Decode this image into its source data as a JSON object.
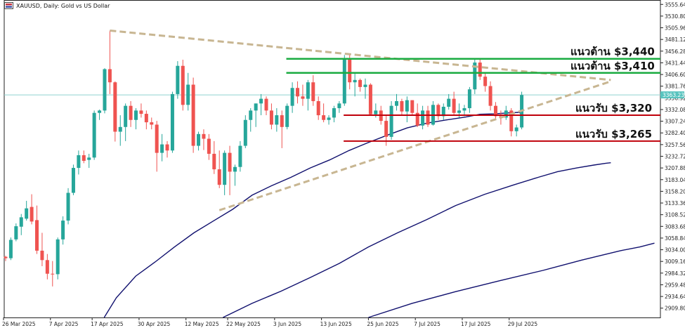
{
  "header": {
    "symbol": "XAUUSD",
    "timeframe": "Daily",
    "description": "Gold vs US Dollar",
    "full_title": "XAUUSD, Daily:  Gold vs US Dollar"
  },
  "chart_data": {
    "type": "candlestick",
    "symbol": "XAUUSD",
    "timeframe": "Daily",
    "ylim": [
      2890,
      3565
    ],
    "y_ticks": [
      "3555.64",
      "3530.80",
      "3505.96",
      "3481.12",
      "3456.28",
      "3431.44",
      "3406.60",
      "3381.76",
      "3356.92",
      "3332.08",
      "3307.24",
      "3282.40",
      "3257.56",
      "3232.72",
      "3207.88",
      "3183.04",
      "3158.20",
      "3133.36",
      "3108.52",
      "3083.68",
      "3058.84",
      "3034.00",
      "3009.16",
      "2984.32",
      "2959.48",
      "2934.64",
      "2909.80"
    ],
    "x_ticks": [
      "26 Mar 2025",
      "7 Apr 2025",
      "17 Apr 2025",
      "30 Apr 2025",
      "12 May 2025",
      "22 May 2025",
      "3 Jun 2025",
      "13 Jun 2025",
      "25 Jun 2025",
      "7 Jul 2025",
      "17 Jul 2025",
      "29 Jul 2025"
    ],
    "current_price": "3363.23",
    "current_price_value": 3363.23,
    "colors": {
      "bull": "#26a69a",
      "bear": "#ef5350",
      "resistance": "#1aab40",
      "support": "#c0000a",
      "trend": "#c8b692",
      "ma": "#10106e",
      "price_line": "#8fd3d0"
    },
    "candles": [
      {
        "o": 3019,
        "h": 3021,
        "l": 3010,
        "c": 3016
      },
      {
        "o": 3016,
        "h": 3060,
        "l": 3012,
        "c": 3055
      },
      {
        "o": 3056,
        "h": 3090,
        "l": 3052,
        "c": 3084
      },
      {
        "o": 3083,
        "h": 3110,
        "l": 3065,
        "c": 3103
      },
      {
        "o": 3100,
        "h": 3138,
        "l": 3096,
        "c": 3122
      },
      {
        "o": 3125,
        "h": 3152,
        "l": 3088,
        "c": 3094
      },
      {
        "o": 3097,
        "h": 3128,
        "l": 3025,
        "c": 3032
      },
      {
        "o": 3032,
        "h": 3070,
        "l": 2999,
        "c": 3012
      },
      {
        "o": 3012,
        "h": 3025,
        "l": 2971,
        "c": 2983
      },
      {
        "o": 2983,
        "h": 3010,
        "l": 2956,
        "c": 2982
      },
      {
        "o": 2982,
        "h": 3060,
        "l": 2971,
        "c": 3056
      },
      {
        "o": 3056,
        "h": 3105,
        "l": 3045,
        "c": 3096
      },
      {
        "o": 3096,
        "h": 3165,
        "l": 3088,
        "c": 3155
      },
      {
        "o": 3155,
        "h": 3215,
        "l": 3150,
        "c": 3208
      },
      {
        "o": 3208,
        "h": 3245,
        "l": 3194,
        "c": 3235
      },
      {
        "o": 3235,
        "h": 3245,
        "l": 3218,
        "c": 3223
      },
      {
        "o": 3225,
        "h": 3238,
        "l": 3208,
        "c": 3230
      },
      {
        "o": 3230,
        "h": 3330,
        "l": 3225,
        "c": 3325
      },
      {
        "o": 3325,
        "h": 3332,
        "l": 3310,
        "c": 3330
      },
      {
        "o": 3330,
        "h": 3420,
        "l": 3324,
        "c": 3418
      },
      {
        "o": 3418,
        "h": 3500,
        "l": 3365,
        "c": 3390
      },
      {
        "o": 3390,
        "h": 3392,
        "l": 3264,
        "c": 3285
      },
      {
        "o": 3285,
        "h": 3320,
        "l": 3255,
        "c": 3295
      },
      {
        "o": 3295,
        "h": 3345,
        "l": 3265,
        "c": 3340
      },
      {
        "o": 3340,
        "h": 3350,
        "l": 3295,
        "c": 3310
      },
      {
        "o": 3310,
        "h": 3335,
        "l": 3290,
        "c": 3330
      },
      {
        "o": 3330,
        "h": 3345,
        "l": 3315,
        "c": 3323
      },
      {
        "o": 3323,
        "h": 3330,
        "l": 3290,
        "c": 3305
      },
      {
        "o": 3305,
        "h": 3315,
        "l": 3290,
        "c": 3300
      },
      {
        "o": 3300,
        "h": 3308,
        "l": 3200,
        "c": 3240
      },
      {
        "o": 3240,
        "h": 3280,
        "l": 3222,
        "c": 3258
      },
      {
        "o": 3258,
        "h": 3265,
        "l": 3230,
        "c": 3245
      },
      {
        "o": 3245,
        "h": 3370,
        "l": 3240,
        "c": 3365
      },
      {
        "o": 3365,
        "h": 3435,
        "l": 3355,
        "c": 3425
      },
      {
        "o": 3425,
        "h": 3438,
        "l": 3330,
        "c": 3342
      },
      {
        "o": 3342,
        "h": 3410,
        "l": 3330,
        "c": 3385
      },
      {
        "o": 3385,
        "h": 3400,
        "l": 3240,
        "c": 3255
      },
      {
        "o": 3255,
        "h": 3285,
        "l": 3245,
        "c": 3280
      },
      {
        "o": 3280,
        "h": 3290,
        "l": 3246,
        "c": 3270
      },
      {
        "o": 3270,
        "h": 3280,
        "l": 3225,
        "c": 3238
      },
      {
        "o": 3238,
        "h": 3265,
        "l": 3195,
        "c": 3205
      },
      {
        "o": 3205,
        "h": 3245,
        "l": 3165,
        "c": 3172
      },
      {
        "o": 3172,
        "h": 3245,
        "l": 3150,
        "c": 3240
      },
      {
        "o": 3240,
        "h": 3255,
        "l": 3150,
        "c": 3200
      },
      {
        "o": 3200,
        "h": 3215,
        "l": 3170,
        "c": 3210
      },
      {
        "o": 3210,
        "h": 3265,
        "l": 3200,
        "c": 3255
      },
      {
        "o": 3255,
        "h": 3320,
        "l": 3250,
        "c": 3310
      },
      {
        "o": 3310,
        "h": 3335,
        "l": 3285,
        "c": 3330
      },
      {
        "o": 3330,
        "h": 3345,
        "l": 3295,
        "c": 3345
      },
      {
        "o": 3345,
        "h": 3365,
        "l": 3320,
        "c": 3355
      },
      {
        "o": 3355,
        "h": 3360,
        "l": 3320,
        "c": 3330
      },
      {
        "o": 3330,
        "h": 3345,
        "l": 3290,
        "c": 3300
      },
      {
        "o": 3300,
        "h": 3335,
        "l": 3285,
        "c": 3320
      },
      {
        "o": 3320,
        "h": 3330,
        "l": 3250,
        "c": 3295
      },
      {
        "o": 3295,
        "h": 3345,
        "l": 3290,
        "c": 3340
      },
      {
        "o": 3340,
        "h": 3390,
        "l": 3325,
        "c": 3378
      },
      {
        "o": 3378,
        "h": 3392,
        "l": 3345,
        "c": 3360
      },
      {
        "o": 3360,
        "h": 3385,
        "l": 3340,
        "c": 3355
      },
      {
        "o": 3355,
        "h": 3395,
        "l": 3330,
        "c": 3390
      },
      {
        "o": 3390,
        "h": 3405,
        "l": 3340,
        "c": 3350
      },
      {
        "o": 3350,
        "h": 3360,
        "l": 3310,
        "c": 3320
      },
      {
        "o": 3320,
        "h": 3345,
        "l": 3305,
        "c": 3310
      },
      {
        "o": 3310,
        "h": 3320,
        "l": 3300,
        "c": 3315
      },
      {
        "o": 3315,
        "h": 3340,
        "l": 3305,
        "c": 3335
      },
      {
        "o": 3335,
        "h": 3350,
        "l": 3325,
        "c": 3345
      },
      {
        "o": 3345,
        "h": 3448,
        "l": 3340,
        "c": 3440
      },
      {
        "o": 3440,
        "h": 3448,
        "l": 3375,
        "c": 3390
      },
      {
        "o": 3390,
        "h": 3410,
        "l": 3360,
        "c": 3395
      },
      {
        "o": 3395,
        "h": 3398,
        "l": 3370,
        "c": 3380
      },
      {
        "o": 3380,
        "h": 3398,
        "l": 3355,
        "c": 3385
      },
      {
        "o": 3385,
        "h": 3388,
        "l": 3320,
        "c": 3322
      },
      {
        "o": 3322,
        "h": 3345,
        "l": 3315,
        "c": 3330
      },
      {
        "o": 3330,
        "h": 3340,
        "l": 3300,
        "c": 3308
      },
      {
        "o": 3308,
        "h": 3320,
        "l": 3255,
        "c": 3274
      },
      {
        "o": 3274,
        "h": 3350,
        "l": 3268,
        "c": 3340
      },
      {
        "o": 3340,
        "h": 3365,
        "l": 3330,
        "c": 3350
      },
      {
        "o": 3350,
        "h": 3355,
        "l": 3320,
        "c": 3328
      },
      {
        "o": 3328,
        "h": 3360,
        "l": 3305,
        "c": 3352
      },
      {
        "o": 3352,
        "h": 3352,
        "l": 3320,
        "c": 3325
      },
      {
        "o": 3325,
        "h": 3345,
        "l": 3295,
        "c": 3298
      },
      {
        "o": 3298,
        "h": 3340,
        "l": 3290,
        "c": 3330
      },
      {
        "o": 3330,
        "h": 3340,
        "l": 3295,
        "c": 3300
      },
      {
        "o": 3300,
        "h": 3350,
        "l": 3298,
        "c": 3342
      },
      {
        "o": 3342,
        "h": 3345,
        "l": 3310,
        "c": 3318
      },
      {
        "o": 3318,
        "h": 3345,
        "l": 3310,
        "c": 3338
      },
      {
        "o": 3338,
        "h": 3365,
        "l": 3332,
        "c": 3355
      },
      {
        "o": 3355,
        "h": 3370,
        "l": 3320,
        "c": 3325
      },
      {
        "o": 3325,
        "h": 3345,
        "l": 3315,
        "c": 3330
      },
      {
        "o": 3330,
        "h": 3342,
        "l": 3318,
        "c": 3335
      },
      {
        "o": 3335,
        "h": 3380,
        "l": 3325,
        "c": 3375
      },
      {
        "o": 3375,
        "h": 3440,
        "l": 3365,
        "c": 3432
      },
      {
        "o": 3432,
        "h": 3440,
        "l": 3395,
        "c": 3402
      },
      {
        "o": 3402,
        "h": 3410,
        "l": 3370,
        "c": 3382
      },
      {
        "o": 3382,
        "h": 3392,
        "l": 3330,
        "c": 3340
      },
      {
        "o": 3340,
        "h": 3348,
        "l": 3310,
        "c": 3318
      },
      {
        "o": 3318,
        "h": 3330,
        "l": 3300,
        "c": 3315
      },
      {
        "o": 3315,
        "h": 3340,
        "l": 3310,
        "c": 3330
      },
      {
        "o": 3330,
        "h": 3335,
        "l": 3275,
        "c": 3286
      },
      {
        "o": 3286,
        "h": 3300,
        "l": 3275,
        "c": 3294
      },
      {
        "o": 3294,
        "h": 3370,
        "l": 3290,
        "c": 3363
      }
    ],
    "moving_averages": [
      {
        "name": "",
        "points": [
          [
            43,
            2890
          ],
          [
            48,
            2932
          ],
          [
            56,
            2978
          ],
          [
            64,
            3008
          ],
          [
            72,
            3040
          ],
          [
            80,
            3070
          ],
          [
            88,
            3095
          ],
          [
            96,
            3120
          ],
          [
            104,
            3150
          ],
          [
            112,
            3170
          ],
          [
            120,
            3188
          ],
          [
            128,
            3208
          ],
          [
            136,
            3225
          ],
          [
            144,
            3245
          ],
          [
            152,
            3262
          ],
          [
            160,
            3278
          ],
          [
            168,
            3293
          ],
          [
            176,
            3303
          ],
          [
            184,
            3310
          ],
          [
            192,
            3316
          ],
          [
            198,
            3322
          ],
          [
            204,
            3323
          ],
          [
            210,
            3325
          ],
          [
            214,
            3326
          ],
          [
            215,
            3324
          ]
        ]
      },
      {
        "name": "",
        "points": [
          [
            92,
            2890
          ],
          [
            104,
            2920
          ],
          [
            116,
            2946
          ],
          [
            128,
            2975
          ],
          [
            140,
            3005
          ],
          [
            152,
            3040
          ],
          [
            164,
            3070
          ],
          [
            176,
            3098
          ],
          [
            188,
            3128
          ],
          [
            200,
            3152
          ],
          [
            212,
            3172
          ],
          [
            222,
            3188
          ],
          [
            230,
            3200
          ],
          [
            238,
            3208
          ],
          [
            245,
            3214
          ],
          [
            250,
            3218
          ],
          [
            252,
            3219
          ]
        ]
      },
      {
        "name": "",
        "points": [
          [
            152,
            2890
          ],
          [
            170,
            2920
          ],
          [
            188,
            2945
          ],
          [
            206,
            2968
          ],
          [
            224,
            2990
          ],
          [
            240,
            3012
          ],
          [
            256,
            3032
          ],
          [
            264,
            3040
          ],
          [
            270,
            3048
          ]
        ]
      }
    ],
    "trendlines": [
      {
        "kind": "descending",
        "from": [
          20,
          3500
        ],
        "to": [
          108,
          3395
        ]
      },
      {
        "kind": "ascending",
        "from": [
          41,
          3118
        ],
        "to": [
          108,
          3392
        ]
      }
    ],
    "levels": [
      {
        "label": "แนวต้าน $3,440",
        "value": 3440,
        "kind": "resistance",
        "x_from": 56
      },
      {
        "label": "แนวต้าน $3,410",
        "value": 3410,
        "kind": "resistance",
        "x_from": 56
      },
      {
        "label": "แนวรับ $3,320",
        "value": 3320,
        "kind": "support",
        "x_from": 67
      },
      {
        "label": "แนวรับ $3,265",
        "value": 3265,
        "kind": "support",
        "x_from": 67
      }
    ]
  }
}
